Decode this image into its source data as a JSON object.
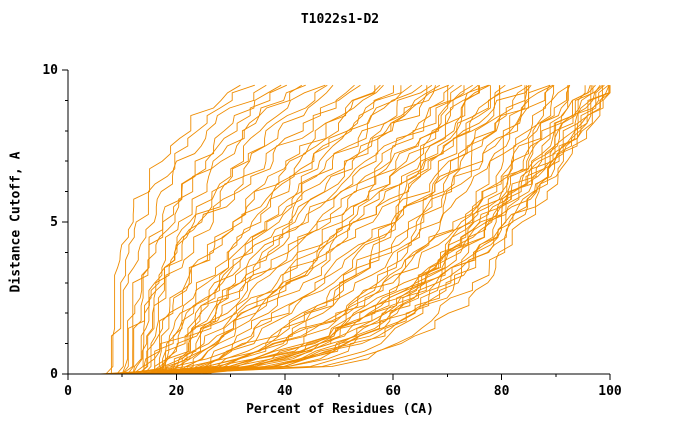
{
  "title": "T1022s1-D2",
  "chart_data": {
    "type": "line",
    "title": "T1022s1-D2",
    "xlabel": "Percent of Residues (CA)",
    "ylabel": "Distance Cutoff, A",
    "xlim": [
      0,
      100
    ],
    "ylim": [
      0,
      10
    ],
    "x_major_ticks": [
      0,
      20,
      40,
      60,
      80,
      100
    ],
    "x_minor_step": 10,
    "y_major_ticks": [
      0,
      5,
      10
    ],
    "y_minor_step": 1,
    "grid": false,
    "legend": "none",
    "line_color": "#ef8c00",
    "axis_color": "#000000",
    "y_top": 9.5,
    "curve_encoding": "[x_at_y0, x_at_ytop, shape_exponent] per model curve, x(y)=x0+(x1-x0)*(y/9.5)^p",
    "curves": [
      [
        7,
        30,
        2.8
      ],
      [
        8,
        33,
        2.5
      ],
      [
        9,
        36,
        2.6
      ],
      [
        10,
        38,
        2.2
      ],
      [
        11,
        40,
        2.4
      ],
      [
        12,
        42,
        2.0
      ],
      [
        10,
        44,
        2.3
      ],
      [
        13,
        46,
        1.9
      ],
      [
        14,
        48,
        2.1
      ],
      [
        12,
        50,
        1.8
      ],
      [
        10,
        52,
        1.6
      ],
      [
        12,
        54,
        1.7
      ],
      [
        14,
        56,
        1.5
      ],
      [
        15,
        58,
        1.6
      ],
      [
        16,
        60,
        1.4
      ],
      [
        13,
        62,
        1.5
      ],
      [
        17,
        64,
        1.3
      ],
      [
        18,
        66,
        1.4
      ],
      [
        15,
        68,
        1.2
      ],
      [
        19,
        70,
        1.3
      ],
      [
        20,
        57,
        1.5
      ],
      [
        16,
        63,
        1.35
      ],
      [
        21,
        67,
        1.25
      ],
      [
        18,
        69,
        1.15
      ],
      [
        14,
        72,
        1.1
      ],
      [
        16,
        74,
        1.0
      ],
      [
        18,
        76,
        1.05
      ],
      [
        20,
        78,
        0.95
      ],
      [
        22,
        80,
        1.0
      ],
      [
        17,
        82,
        0.9
      ],
      [
        19,
        84,
        0.95
      ],
      [
        21,
        86,
        0.85
      ],
      [
        23,
        88,
        0.9
      ],
      [
        25,
        90,
        0.8
      ],
      [
        15,
        73,
        1.0
      ],
      [
        18,
        77,
        0.92
      ],
      [
        22,
        81,
        0.88
      ],
      [
        24,
        85,
        0.82
      ],
      [
        26,
        89,
        0.78
      ],
      [
        20,
        75,
        0.98
      ],
      [
        10,
        92,
        0.55
      ],
      [
        12,
        94,
        0.5
      ],
      [
        14,
        96,
        0.52
      ],
      [
        16,
        98,
        0.48
      ],
      [
        18,
        100,
        0.5
      ],
      [
        20,
        99,
        0.45
      ],
      [
        11,
        95,
        0.42
      ],
      [
        13,
        97,
        0.44
      ],
      [
        15,
        99,
        0.4
      ],
      [
        17,
        100,
        0.38
      ],
      [
        22,
        98,
        0.5
      ],
      [
        24,
        100,
        0.46
      ],
      [
        9,
        93,
        0.47
      ],
      [
        19,
        96,
        0.43
      ],
      [
        21,
        100,
        0.41
      ],
      [
        23,
        99,
        0.52
      ],
      [
        8,
        70,
        0.3
      ],
      [
        10,
        75,
        0.28
      ],
      [
        12,
        80,
        0.3
      ],
      [
        9,
        85,
        0.26
      ],
      [
        11,
        90,
        0.27
      ],
      [
        13,
        95,
        0.25
      ],
      [
        14,
        88,
        0.3
      ],
      [
        16,
        92,
        0.28
      ],
      [
        7,
        78,
        0.32
      ],
      [
        15,
        84,
        0.29
      ],
      [
        6,
        72,
        0.33
      ],
      [
        17,
        97,
        0.26
      ]
    ]
  }
}
